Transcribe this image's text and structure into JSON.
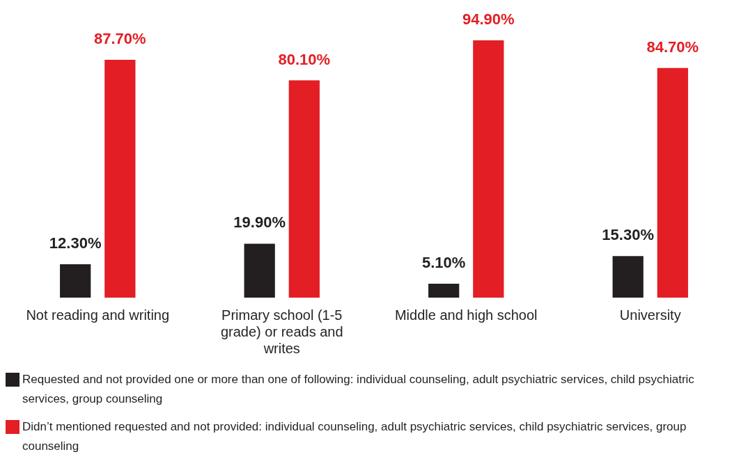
{
  "chart_data": {
    "type": "bar",
    "categories": [
      "Not reading and writing",
      "Primary school (1-5 grade) or reads and writes",
      "Middle and high school",
      "University"
    ],
    "series": [
      {
        "name": "Requested and not provided one or more than one of following: individual counseling, adult psychiatric services, child psychiatric services, group counseling",
        "color": "#231f20",
        "values": [
          12.3,
          19.9,
          5.1,
          15.3
        ],
        "value_labels": [
          "12.30%",
          "19.90%",
          "5.10%",
          "15.30%"
        ]
      },
      {
        "name": "Didn’t mentioned requested and not provided: individual counseling, adult psychiatric services, child psychiatric services, group counseling",
        "color": "#e31e24",
        "values": [
          87.7,
          80.1,
          94.9,
          84.7
        ],
        "value_labels": [
          "87.70%",
          "80.10%",
          "94.90%",
          "84.70%"
        ]
      }
    ],
    "legend": "bottom",
    "grid": false
  }
}
